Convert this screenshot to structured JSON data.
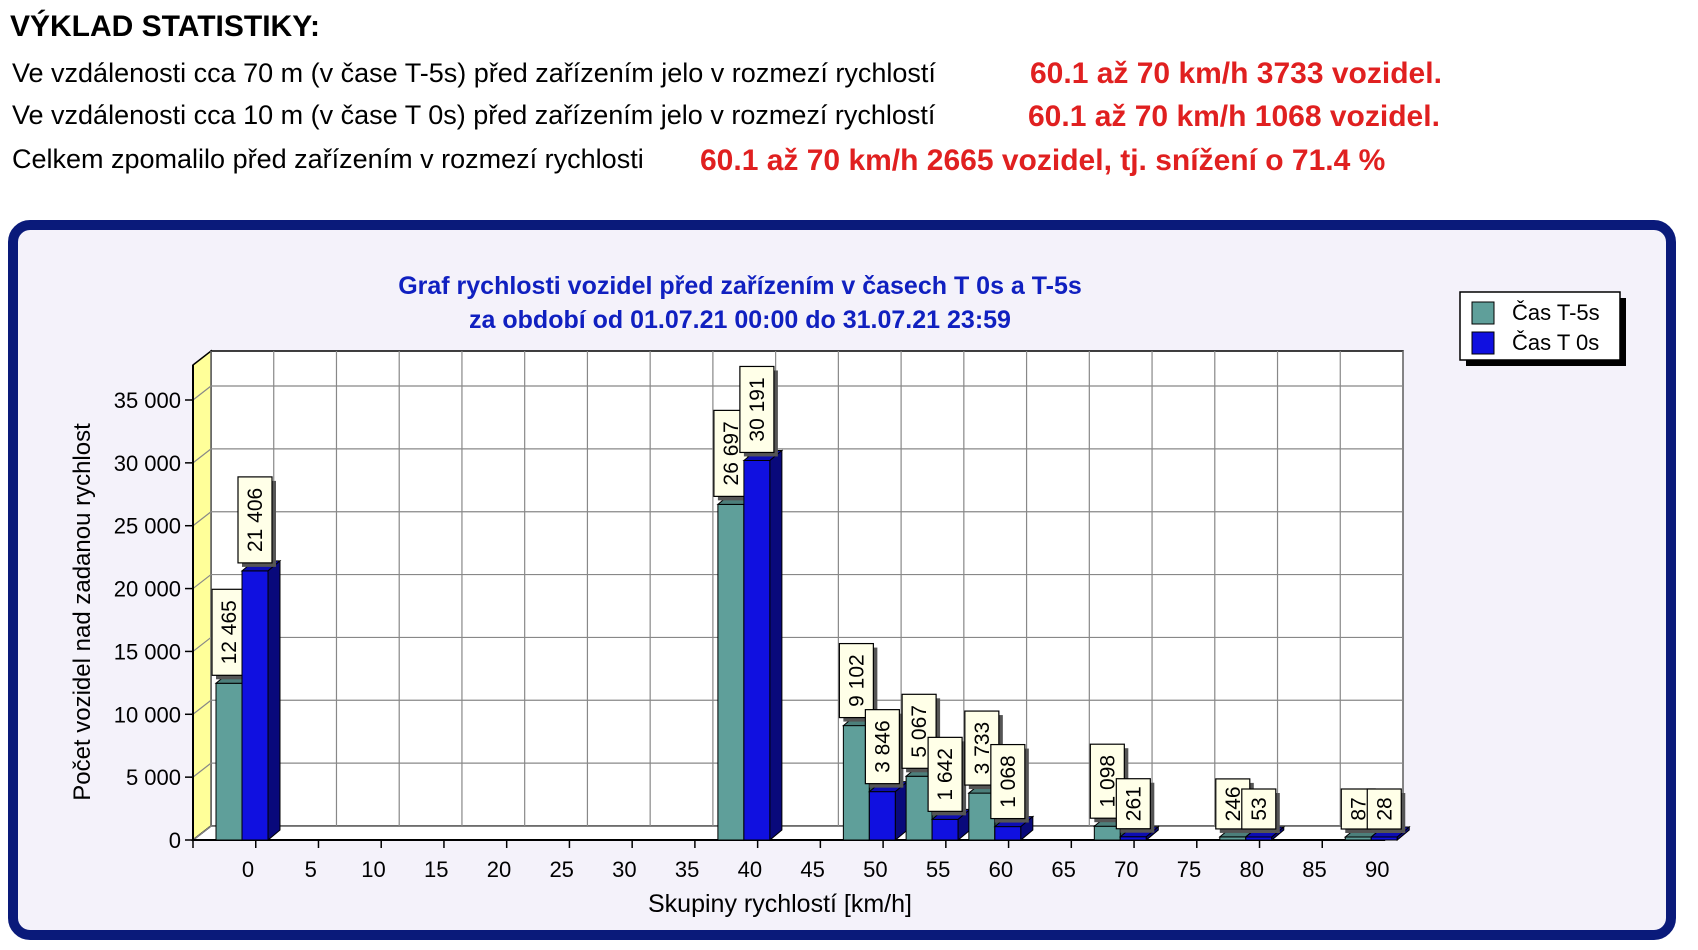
{
  "statistics": {
    "heading": "VÝKLAD STATISTIKY:",
    "lines": [
      {
        "text": "Ve vzdálenosti cca 70 m (v čase T-5s) před zařízením jelo v rozmezí rychlostí",
        "value": "60.1 až 70 km/h 3733 vozidel."
      },
      {
        "text": "Ve vzdálenosti cca 10 m (v čase T 0s) před zařízením jelo v rozmezí rychlostí",
        "value": "60.1 až 70 km/h 1068 vozidel."
      },
      {
        "text": "Celkem zpomalilo před zařízením v rozmezí rychlosti",
        "value": "60.1 až 70 km/h 2665 vozidel, tj. snížení o 71.4 %"
      }
    ]
  },
  "chart_data": {
    "type": "bar",
    "title": "Graf rychlosti vozidel před zařízením v časech T 0s a T-5s",
    "subtitle": "za období od 01.07.21 00:00 do 31.07.21 23:59",
    "xlabel": "Skupiny rychlostí [km/h]",
    "ylabel": "Počet vozidel nad zadanou rychlost",
    "ylim": [
      0,
      35000
    ],
    "yticks": [
      "0",
      "5 000",
      "10 000",
      "15 000",
      "20 000",
      "25 000",
      "30 000",
      "35 000"
    ],
    "ytick_values": [
      0,
      5000,
      10000,
      15000,
      20000,
      25000,
      30000,
      35000
    ],
    "categories": [
      "0",
      "5",
      "10",
      "15",
      "20",
      "25",
      "30",
      "35",
      "40",
      "45",
      "50",
      "55",
      "60",
      "65",
      "70",
      "75",
      "80",
      "85",
      "90"
    ],
    "series": [
      {
        "name": "Čas T-5s",
        "color": "#5f9f9a",
        "values": [
          12465,
          0,
          0,
          0,
          0,
          0,
          0,
          0,
          26697,
          0,
          9102,
          5067,
          3733,
          0,
          1098,
          0,
          246,
          0,
          87
        ],
        "labels": [
          "12 465",
          "",
          "",
          "",
          "",
          "",
          "",
          "",
          "26 697",
          "",
          "9 102",
          "5 067",
          "3 733",
          "",
          "1 098",
          "",
          "246",
          "",
          "87"
        ]
      },
      {
        "name": "Čas T 0s",
        "color": "#1010e0",
        "values": [
          21406,
          0,
          0,
          0,
          0,
          0,
          0,
          0,
          30191,
          0,
          3846,
          1642,
          1068,
          0,
          261,
          0,
          53,
          0,
          28
        ],
        "labels": [
          "21 406",
          "",
          "",
          "",
          "",
          "",
          "",
          "",
          "30 191",
          "",
          "3 846",
          "1 642",
          "1 068",
          "",
          "261",
          "",
          "53",
          "",
          "28"
        ]
      }
    ],
    "legend_position": "top-right",
    "grid": true
  }
}
